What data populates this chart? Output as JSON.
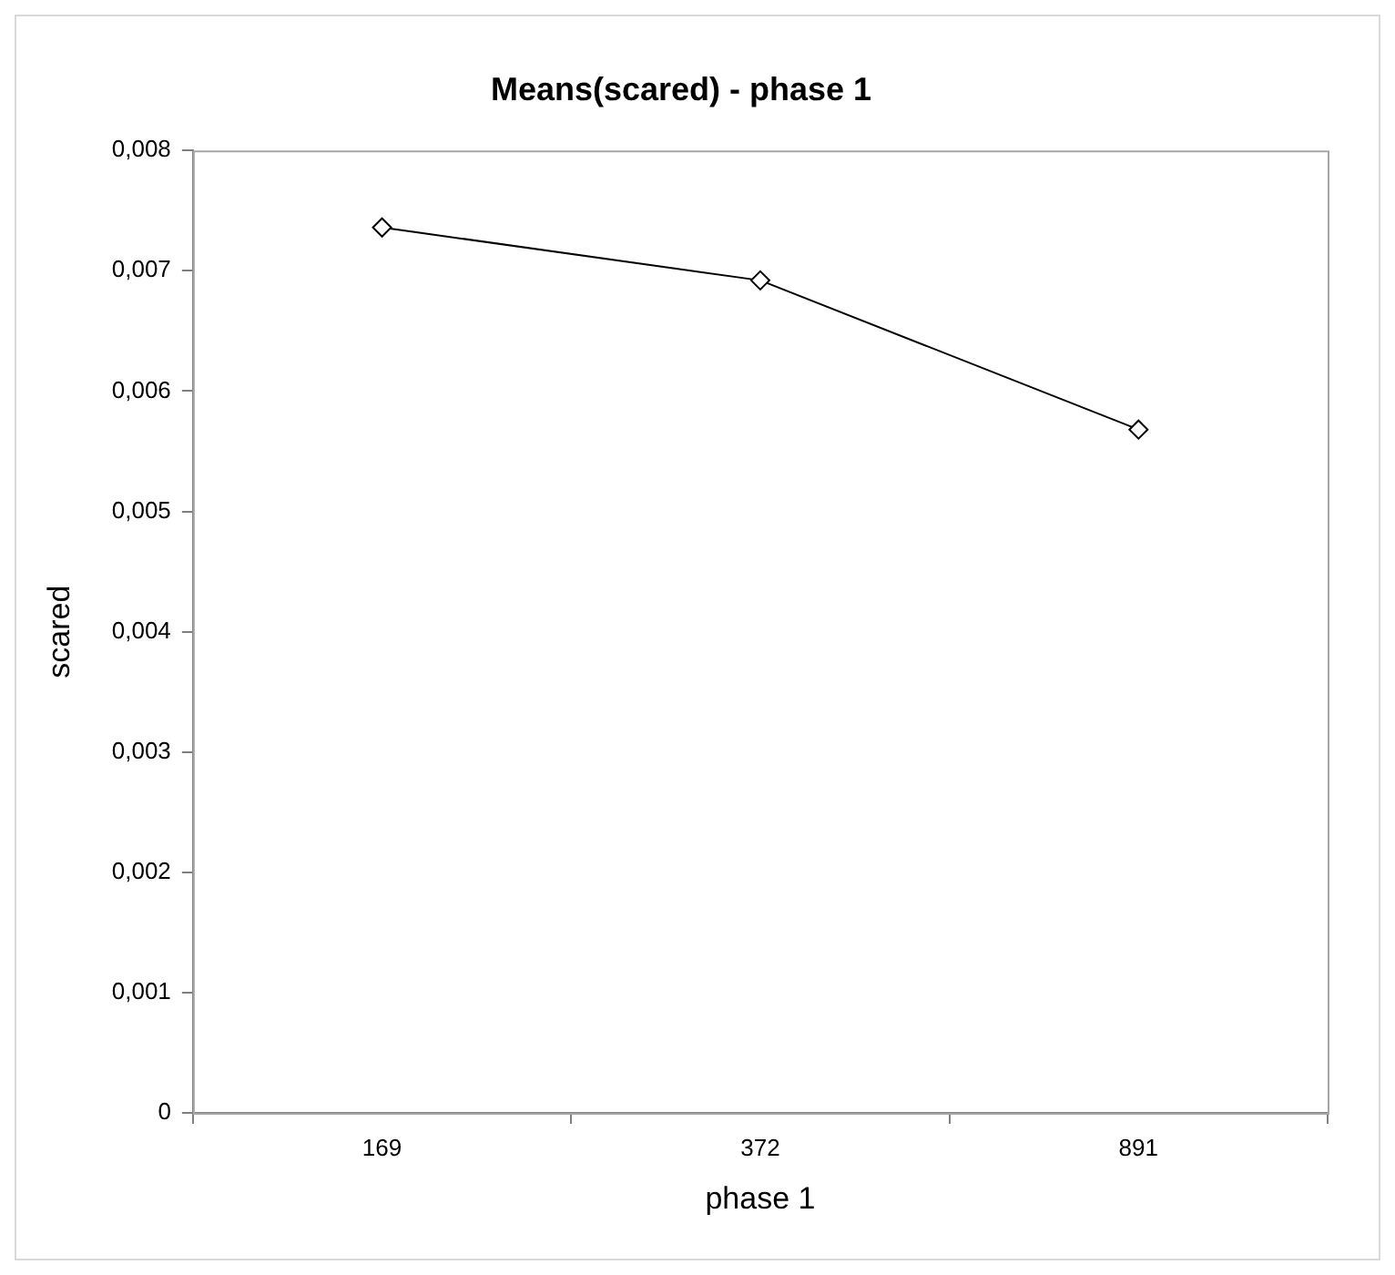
{
  "chart_data": {
    "type": "line",
    "title": "Means(scared) - phase 1",
    "xlabel": "phase 1",
    "ylabel": "scared",
    "categories": [
      "169",
      "372",
      "891"
    ],
    "series": [
      {
        "color": "#000000",
        "values": [
          0.00736,
          0.00692,
          0.00568
        ]
      }
    ],
    "ylim": [
      0,
      0.008
    ],
    "yticks": [
      0,
      {
        "value": 0.001,
        "label": "0,001"
      },
      {
        "value": 0.002,
        "label": "0,002"
      },
      {
        "value": 0.003,
        "label": "0,003"
      },
      {
        "value": 0.004,
        "label": "0,004"
      },
      {
        "value": 0.005,
        "label": "0,005"
      },
      {
        "value": 0.006,
        "label": "0,006"
      },
      {
        "value": 0.007,
        "label": "0,007"
      },
      {
        "value": 0.008,
        "label": "0,008"
      }
    ],
    "grid": false,
    "legend": false,
    "marker": "diamond",
    "line_style": "solid"
  }
}
